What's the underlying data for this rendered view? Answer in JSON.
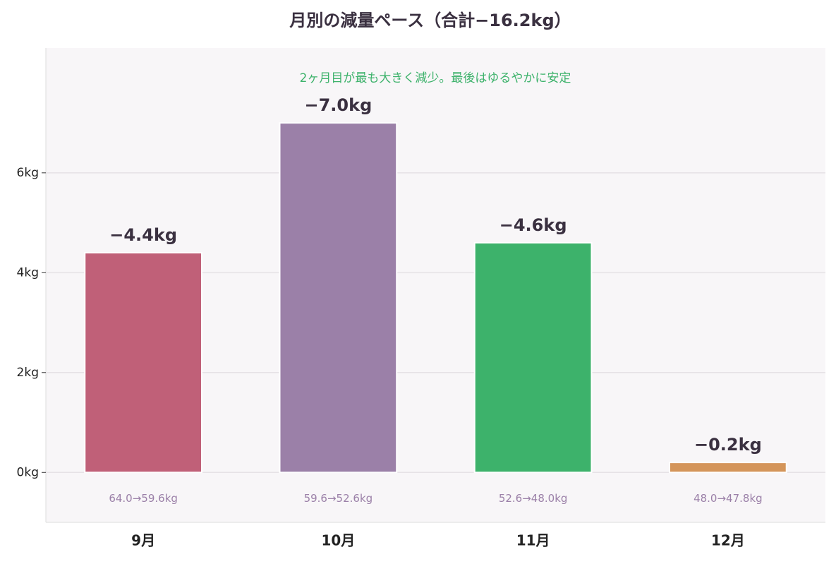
{
  "chart_data": {
    "type": "bar",
    "title": "月別の減量ペース（合計−16.2kg）",
    "annotation": "2ヶ月目が最も大きく減少。最後はゆるやかに安定",
    "categories": [
      "9月",
      "10月",
      "11月",
      "12月"
    ],
    "values": [
      4.4,
      7.0,
      4.6,
      0.2
    ],
    "value_labels": [
      "−4.4kg",
      "−7.0kg",
      "−4.6kg",
      "−0.2kg"
    ],
    "range_labels": [
      "64.0→59.6kg",
      "59.6→52.6kg",
      "52.6→48.0kg",
      "48.0→47.8kg"
    ],
    "colors": [
      "#c06078",
      "#9b80a8",
      "#3db26b",
      "#d4955a"
    ],
    "ylim": [
      -1,
      8.5
    ],
    "yticks": [
      {
        "value": 0,
        "label": "0kg"
      },
      {
        "value": 2,
        "label": "2kg"
      },
      {
        "value": 4,
        "label": "4kg"
      },
      {
        "value": 6,
        "label": "6kg"
      }
    ],
    "grid": true
  }
}
